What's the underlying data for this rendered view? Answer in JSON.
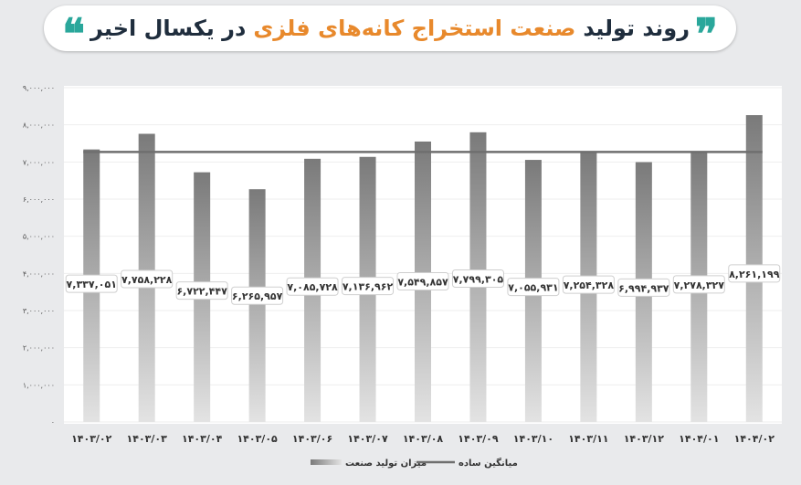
{
  "title": {
    "part1": "روند تولید",
    "part2": "صنعت استخراج کانه‌های فلزی",
    "part3": "در یکسال اخیر"
  },
  "colors": {
    "title_teal": "#2aa79b",
    "title_orange": "#e8892c",
    "title_dark": "#1f2d3d",
    "bar_top": "#7a7a7a",
    "bar_bottom": "#e3e3e3",
    "average_line": "#6f6f6f"
  },
  "chart_data": {
    "type": "bar",
    "categories": [
      "۱۴۰۳/۰۲",
      "۱۴۰۳/۰۳",
      "۱۴۰۳/۰۴",
      "۱۴۰۳/۰۵",
      "۱۴۰۳/۰۶",
      "۱۴۰۳/۰۷",
      "۱۴۰۳/۰۸",
      "۱۴۰۳/۰۹",
      "۱۴۰۳/۱۰",
      "۱۴۰۳/۱۱",
      "۱۴۰۳/۱۲",
      "۱۴۰۴/۰۱",
      "۱۴۰۴/۰۲"
    ],
    "values": [
      7337051,
      7758228,
      6722447,
      6265957,
      7085728,
      7136962,
      7549857,
      7799305,
      7055931,
      7254328,
      6994937,
      7278327,
      8261199
    ],
    "data_labels": [
      "۷,۳۳۷,۰۵۱",
      "۷,۷۵۸,۲۲۸",
      "۶,۷۲۲,۴۴۷",
      "۶,۲۶۵,۹۵۷",
      "۷,۰۸۵,۷۲۸",
      "۷,۱۳۶,۹۶۲",
      "۷,۵۴۹,۸۵۷",
      "۷,۷۹۹,۳۰۵",
      "۷,۰۵۵,۹۳۱",
      "۷,۲۵۴,۳۲۸",
      "۶,۹۹۴,۹۳۷",
      "۷,۲۷۸,۳۲۷",
      "۸,۲۶۱,۱۹۹"
    ],
    "average": 7269246,
    "ylim": [
      0,
      9000000
    ],
    "yticks": [
      0,
      1000000,
      2000000,
      3000000,
      4000000,
      5000000,
      6000000,
      7000000,
      8000000,
      9000000
    ],
    "ytick_labels": [
      "۰",
      "۱,۰۰۰,۰۰۰",
      "۲,۰۰۰,۰۰۰",
      "۳,۰۰۰,۰۰۰",
      "۴,۰۰۰,۰۰۰",
      "۵,۰۰۰,۰۰۰",
      "۶,۰۰۰,۰۰۰",
      "۷,۰۰۰,۰۰۰",
      "۸,۰۰۰,۰۰۰",
      "۹,۰۰۰,۰۰۰"
    ],
    "grid": true,
    "legend_position": "bottom-center",
    "legend": {
      "bars": "میزان تولید صنعت",
      "line": "میانگین ساده"
    }
  }
}
